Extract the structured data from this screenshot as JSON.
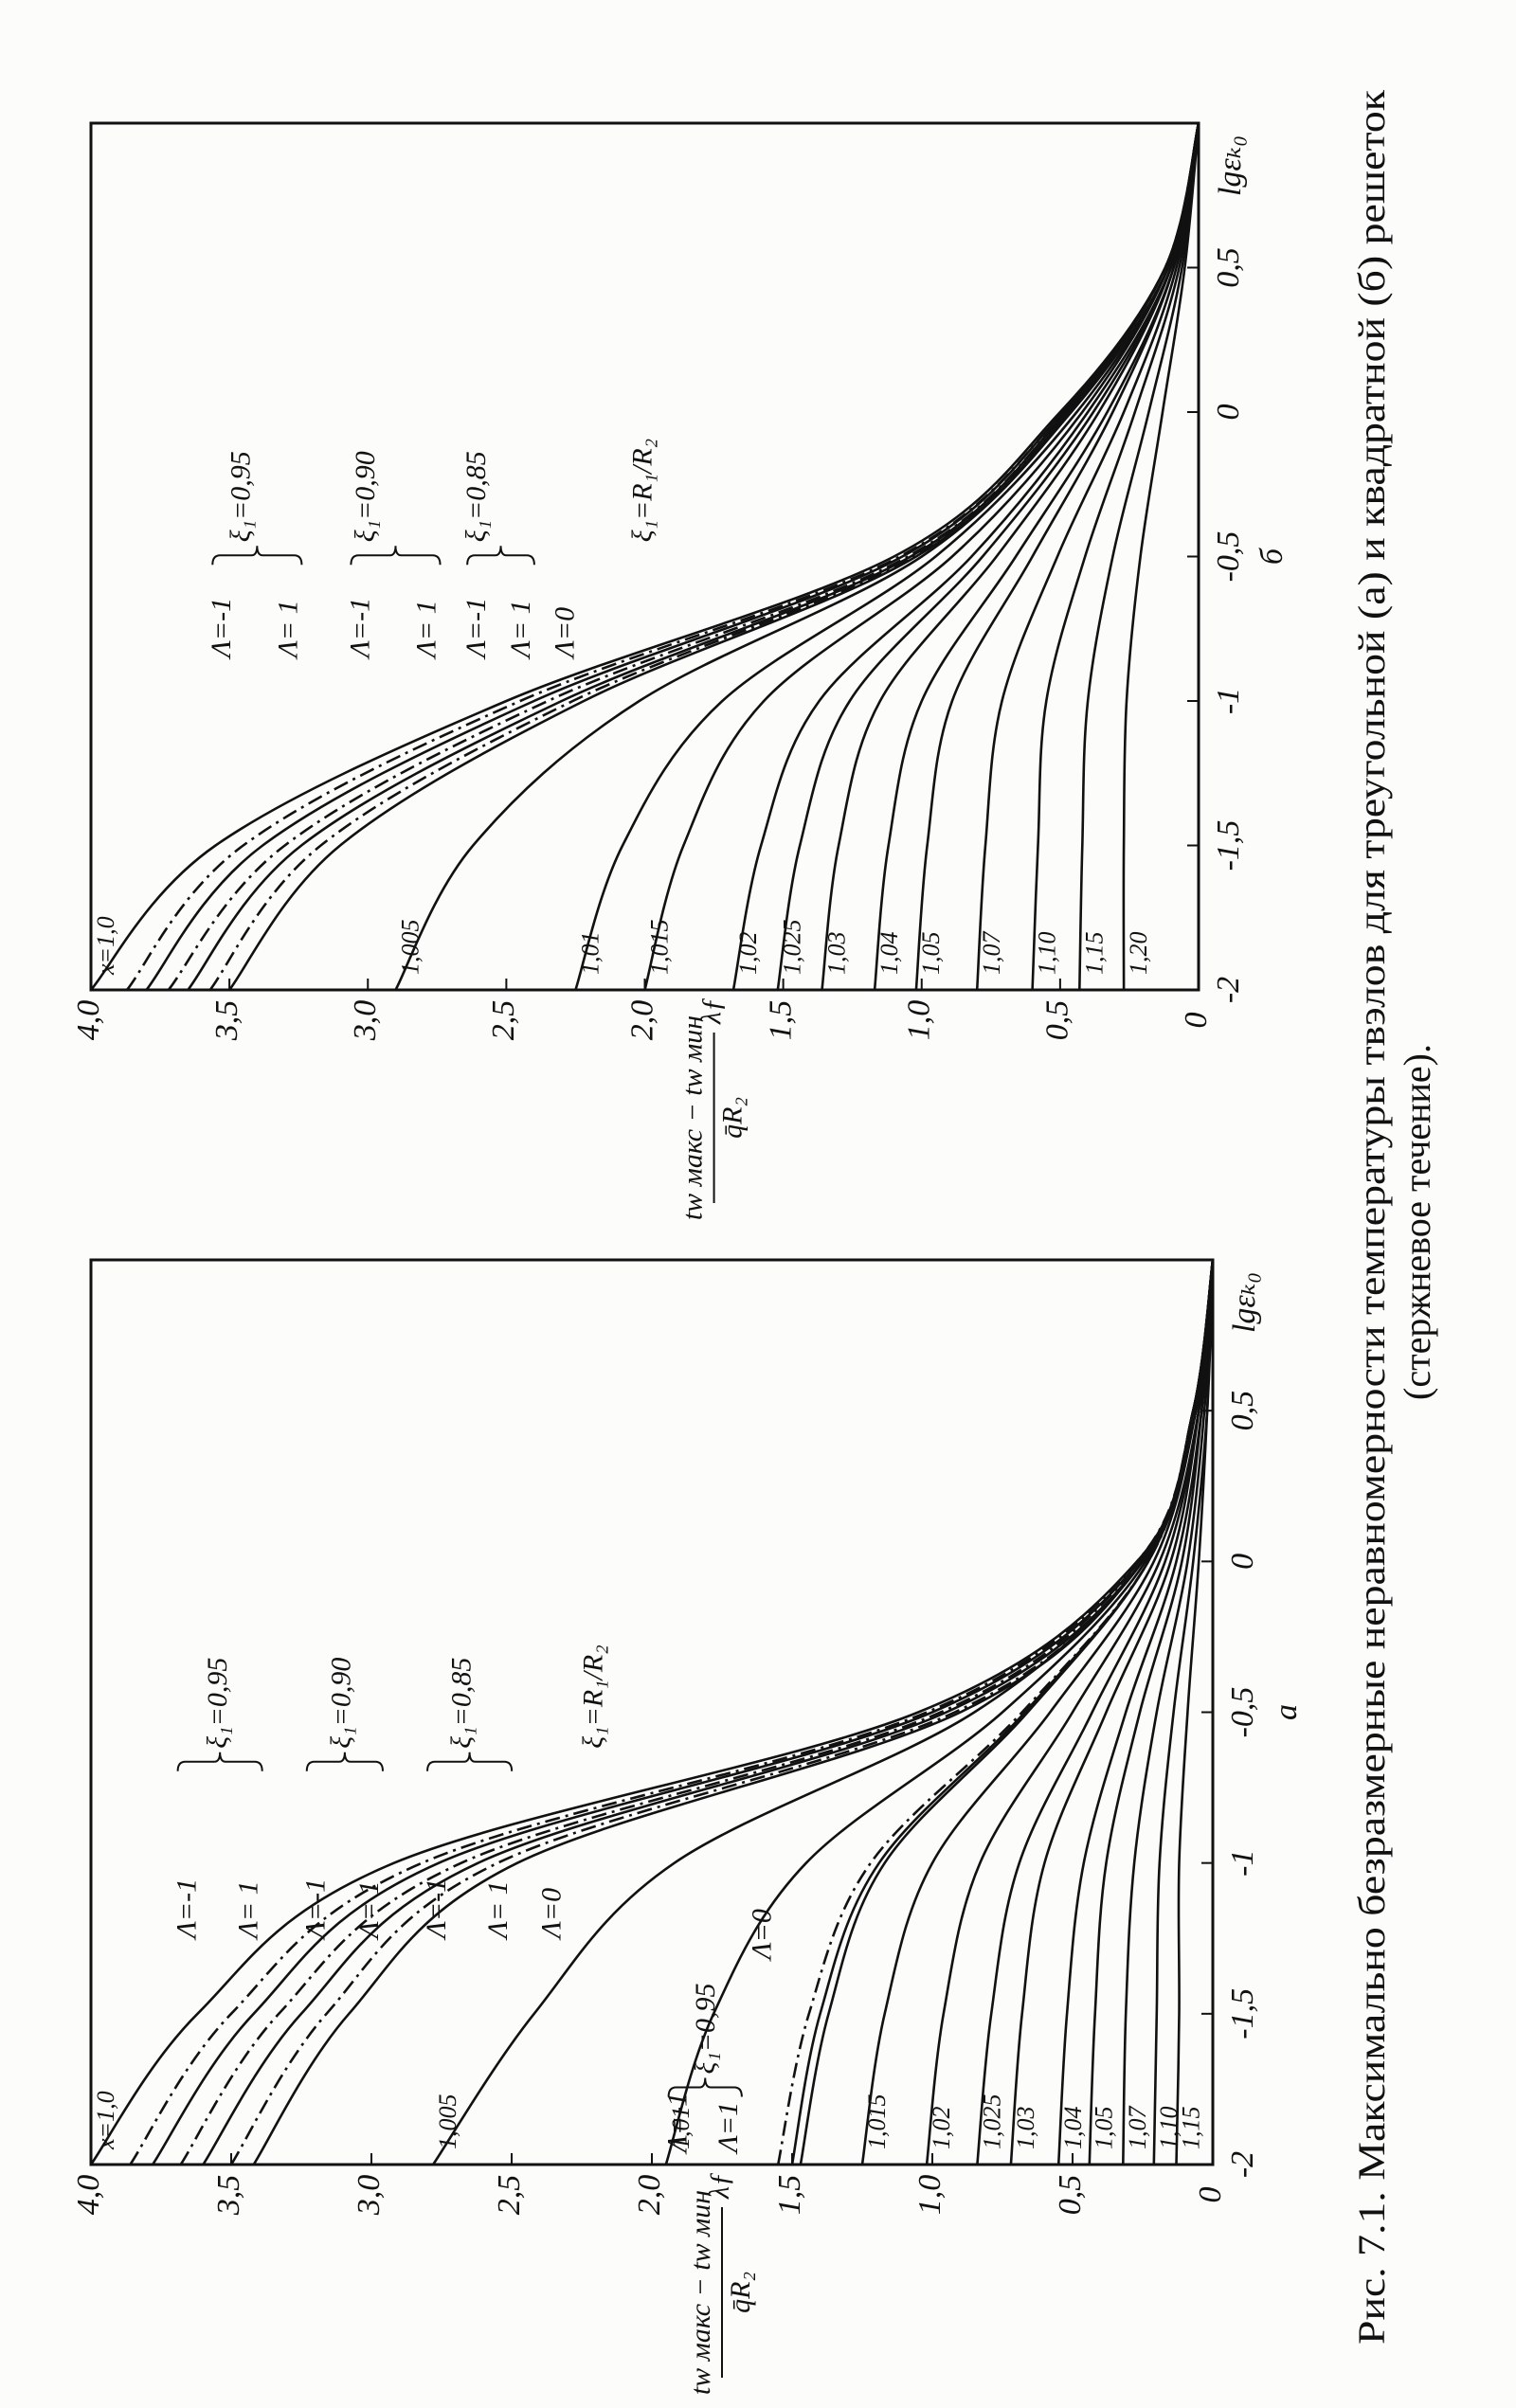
{
  "chart_data": [
    {
      "type": "line",
      "panel": "а",
      "xlabel": "lgεₖ₀",
      "ylabel": {
        "numerator": "tw макс − tw мин",
        "denominator": "q̄R₂",
        "factor": "λƒ"
      },
      "xlim": [
        -2,
        1
      ],
      "ylim": [
        0,
        4
      ],
      "xticks": [
        -2,
        {
          "value": -1.5,
          "label": "-1,5"
        },
        -1,
        {
          "value": -0.5,
          "label": "-0,5"
        },
        0,
        {
          "value": 0.5,
          "label": "0,5"
        }
      ],
      "yticks": [
        0,
        {
          "value": 0.5,
          "label": "0,5"
        },
        {
          "value": 1,
          "label": "1,0"
        },
        {
          "value": 1.5,
          "label": "1,5"
        },
        {
          "value": 2,
          "label": "2,0"
        },
        {
          "value": 2.5,
          "label": "2,5"
        },
        {
          "value": 3,
          "label": "3,0"
        },
        {
          "value": 3.5,
          "label": "3,5"
        },
        {
          "value": 4,
          "label": "4,0"
        }
      ],
      "annotations": [
        "Λ=-1",
        "Λ= 1",
        "Λ=-1",
        "Λ= 1",
        "Λ=-1",
        "Λ= 1",
        "Λ=0",
        "ξ₁=0,95",
        "ξ₁=0,90",
        "ξ₁=0,85",
        "ξ₁=R₁/R₂",
        "Λ=-1",
        "Λ=1",
        "ξ₁=0,95",
        "Λ=0"
      ],
      "x": [
        -2,
        -1.5,
        -1,
        -0.5,
        0,
        0.5,
        1
      ],
      "series": [
        {
          "name": "x=1,0",
          "color": "#111111",
          "values": [
            4.0,
            3.62,
            2.92,
            1.05,
            0.27,
            0.07,
            0
          ]
        },
        {
          "color": "#111111",
          "dash": "dashdot",
          "values": [
            3.86,
            3.5,
            2.82,
            1.02,
            0.27,
            0.07,
            0
          ]
        },
        {
          "color": "#111111",
          "values": [
            3.78,
            3.42,
            2.76,
            1.0,
            0.26,
            0.07,
            0
          ]
        },
        {
          "color": "#111111",
          "dash": "dashdot",
          "values": [
            3.68,
            3.33,
            2.68,
            0.97,
            0.26,
            0.07,
            0
          ]
        },
        {
          "color": "#111111",
          "values": [
            3.6,
            3.25,
            2.62,
            0.95,
            0.25,
            0.07,
            0
          ]
        },
        {
          "color": "#111111",
          "dash": "dashdot",
          "values": [
            3.5,
            3.16,
            2.55,
            0.92,
            0.25,
            0.07,
            0
          ]
        },
        {
          "color": "#111111",
          "values": [
            3.42,
            3.08,
            2.48,
            0.9,
            0.25,
            0.07,
            0
          ]
        },
        {
          "name": "1,005",
          "color": "#111111",
          "values": [
            2.78,
            2.42,
            1.92,
            0.85,
            0.25,
            0.07,
            0
          ]
        },
        {
          "name": "1,01",
          "color": "#111111",
          "values": [
            1.95,
            1.78,
            1.45,
            0.75,
            0.24,
            0.06,
            0
          ]
        },
        {
          "color": "#111111",
          "dash": "dashdot",
          "values": [
            1.55,
            1.44,
            1.22,
            0.68,
            0.23,
            0.06,
            0
          ]
        },
        {
          "color": "#111111",
          "values": [
            1.5,
            1.4,
            1.19,
            0.67,
            0.23,
            0.06,
            0
          ]
        },
        {
          "color": "#111111",
          "values": [
            1.47,
            1.37,
            1.17,
            0.66,
            0.23,
            0.06,
            0
          ]
        },
        {
          "name": "1,015",
          "color": "#111111",
          "values": [
            1.25,
            1.17,
            1.0,
            0.58,
            0.21,
            0.06,
            0
          ]
        },
        {
          "name": "1,02",
          "color": "#111111",
          "values": [
            1.02,
            0.96,
            0.83,
            0.5,
            0.19,
            0.05,
            0
          ]
        },
        {
          "name": "1,025",
          "color": "#111111",
          "values": [
            0.84,
            0.79,
            0.69,
            0.43,
            0.17,
            0.05,
            0
          ]
        },
        {
          "name": "1,03",
          "color": "#111111",
          "values": [
            0.72,
            0.68,
            0.6,
            0.38,
            0.15,
            0.05,
            0
          ]
        },
        {
          "name": "1,04",
          "color": "#111111",
          "values": [
            0.55,
            0.52,
            0.46,
            0.31,
            0.13,
            0.04,
            0
          ]
        },
        {
          "name": "1,05",
          "color": "#111111",
          "values": [
            0.44,
            0.42,
            0.38,
            0.26,
            0.11,
            0.04,
            0
          ]
        },
        {
          "name": "1,07",
          "color": "#111111",
          "values": [
            0.32,
            0.31,
            0.28,
            0.2,
            0.09,
            0.03,
            0
          ]
        },
        {
          "name": "1,10",
          "color": "#111111",
          "values": [
            0.21,
            0.2,
            0.19,
            0.14,
            0.07,
            0.02,
            0
          ]
        },
        {
          "name": "1,15",
          "color": "#111111",
          "values": [
            0.13,
            0.12,
            0.12,
            0.09,
            0.05,
            0.02,
            0
          ]
        }
      ]
    },
    {
      "type": "line",
      "panel": "б",
      "xlabel": "lgεₖ₀",
      "ylabel": {
        "numerator": "tw макс − tw мин",
        "denominator": "q̄R₂",
        "factor": "λƒ"
      },
      "xlim": [
        -2,
        1
      ],
      "ylim": [
        0,
        4
      ],
      "xticks": [
        -2,
        {
          "value": -1.5,
          "label": "-1,5"
        },
        -1,
        {
          "value": -0.5,
          "label": "-0,5"
        },
        0,
        {
          "value": 0.5,
          "label": "0,5"
        }
      ],
      "yticks": [
        0,
        {
          "value": 0.5,
          "label": "0,5"
        },
        {
          "value": 1,
          "label": "1,0"
        },
        {
          "value": 1.5,
          "label": "1,5"
        },
        {
          "value": 2,
          "label": "2,0"
        },
        {
          "value": 2.5,
          "label": "2,5"
        },
        {
          "value": 3,
          "label": "3,0"
        },
        {
          "value": 3.5,
          "label": "3,5"
        },
        {
          "value": 4,
          "label": "4,0"
        }
      ],
      "annotations": [
        "Λ=-1",
        "Λ= 1",
        "Λ=-1",
        "Λ= 1",
        "Λ=-1",
        "Λ= 1",
        "Λ=0",
        "ξ₁=0,95",
        "ξ₁=0,90",
        "ξ₁=0,85",
        "ξ₁=R₁/R₂"
      ],
      "x": [
        -2,
        -1.5,
        -1,
        -0.5,
        0,
        0.5,
        1
      ],
      "series": [
        {
          "name": "x=1,0",
          "color": "#111111",
          "values": [
            4.0,
            3.55,
            2.5,
            1.1,
            0.5,
            0.12,
            0
          ]
        },
        {
          "color": "#111111",
          "dash": "dashdot",
          "values": [
            3.87,
            3.45,
            2.45,
            1.08,
            0.49,
            0.12,
            0
          ]
        },
        {
          "color": "#111111",
          "values": [
            3.8,
            3.38,
            2.4,
            1.07,
            0.49,
            0.12,
            0
          ]
        },
        {
          "color": "#111111",
          "dash": "dashdot",
          "values": [
            3.72,
            3.3,
            2.35,
            1.05,
            0.48,
            0.12,
            0
          ]
        },
        {
          "color": "#111111",
          "values": [
            3.65,
            3.24,
            2.3,
            1.04,
            0.48,
            0.12,
            0
          ]
        },
        {
          "color": "#111111",
          "dash": "dashdot",
          "values": [
            3.57,
            3.17,
            2.26,
            1.03,
            0.47,
            0.12,
            0
          ]
        },
        {
          "color": "#111111",
          "values": [
            3.5,
            3.1,
            2.22,
            1.02,
            0.47,
            0.12,
            0
          ]
        },
        {
          "name": "1,005",
          "color": "#111111",
          "values": [
            2.9,
            2.62,
            2.02,
            1.0,
            0.46,
            0.11,
            0
          ]
        },
        {
          "name": "1,01",
          "color": "#111111",
          "values": [
            2.25,
            2.08,
            1.72,
            0.95,
            0.44,
            0.11,
            0
          ]
        },
        {
          "name": "1,015",
          "color": "#111111",
          "values": [
            2.0,
            1.86,
            1.57,
            0.89,
            0.42,
            0.11,
            0
          ]
        },
        {
          "name": "1,02",
          "color": "#111111",
          "values": [
            1.68,
            1.58,
            1.37,
            0.82,
            0.4,
            0.1,
            0
          ]
        },
        {
          "name": "1,025",
          "color": "#111111",
          "values": [
            1.52,
            1.44,
            1.26,
            0.78,
            0.38,
            0.1,
            0
          ]
        },
        {
          "name": "1,03",
          "color": "#111111",
          "values": [
            1.36,
            1.3,
            1.15,
            0.73,
            0.36,
            0.1,
            0
          ]
        },
        {
          "name": "1,04",
          "color": "#111111",
          "values": [
            1.17,
            1.12,
            1.0,
            0.66,
            0.33,
            0.09,
            0
          ]
        },
        {
          "name": "1,05",
          "color": "#111111",
          "values": [
            1.02,
            0.98,
            0.89,
            0.6,
            0.31,
            0.09,
            0
          ]
        },
        {
          "name": "1,07",
          "color": "#111111",
          "values": [
            0.8,
            0.77,
            0.71,
            0.51,
            0.27,
            0.08,
            0
          ]
        },
        {
          "name": "1,10",
          "color": "#111111",
          "values": [
            0.6,
            0.58,
            0.55,
            0.41,
            0.23,
            0.07,
            0
          ]
        },
        {
          "name": "1,15",
          "color": "#111111",
          "values": [
            0.43,
            0.42,
            0.4,
            0.31,
            0.18,
            0.06,
            0
          ]
        },
        {
          "name": "1,20",
          "color": "#111111",
          "values": [
            0.27,
            0.27,
            0.26,
            0.21,
            0.13,
            0.05,
            0
          ]
        }
      ]
    }
  ],
  "caption": {
    "line1": "Рис. 7.1. Максимально безразмерные неравномерности температуры твэлов для треугольной (а) и квадратной (б) решеток",
    "line2": "(стержневое течение)."
  }
}
